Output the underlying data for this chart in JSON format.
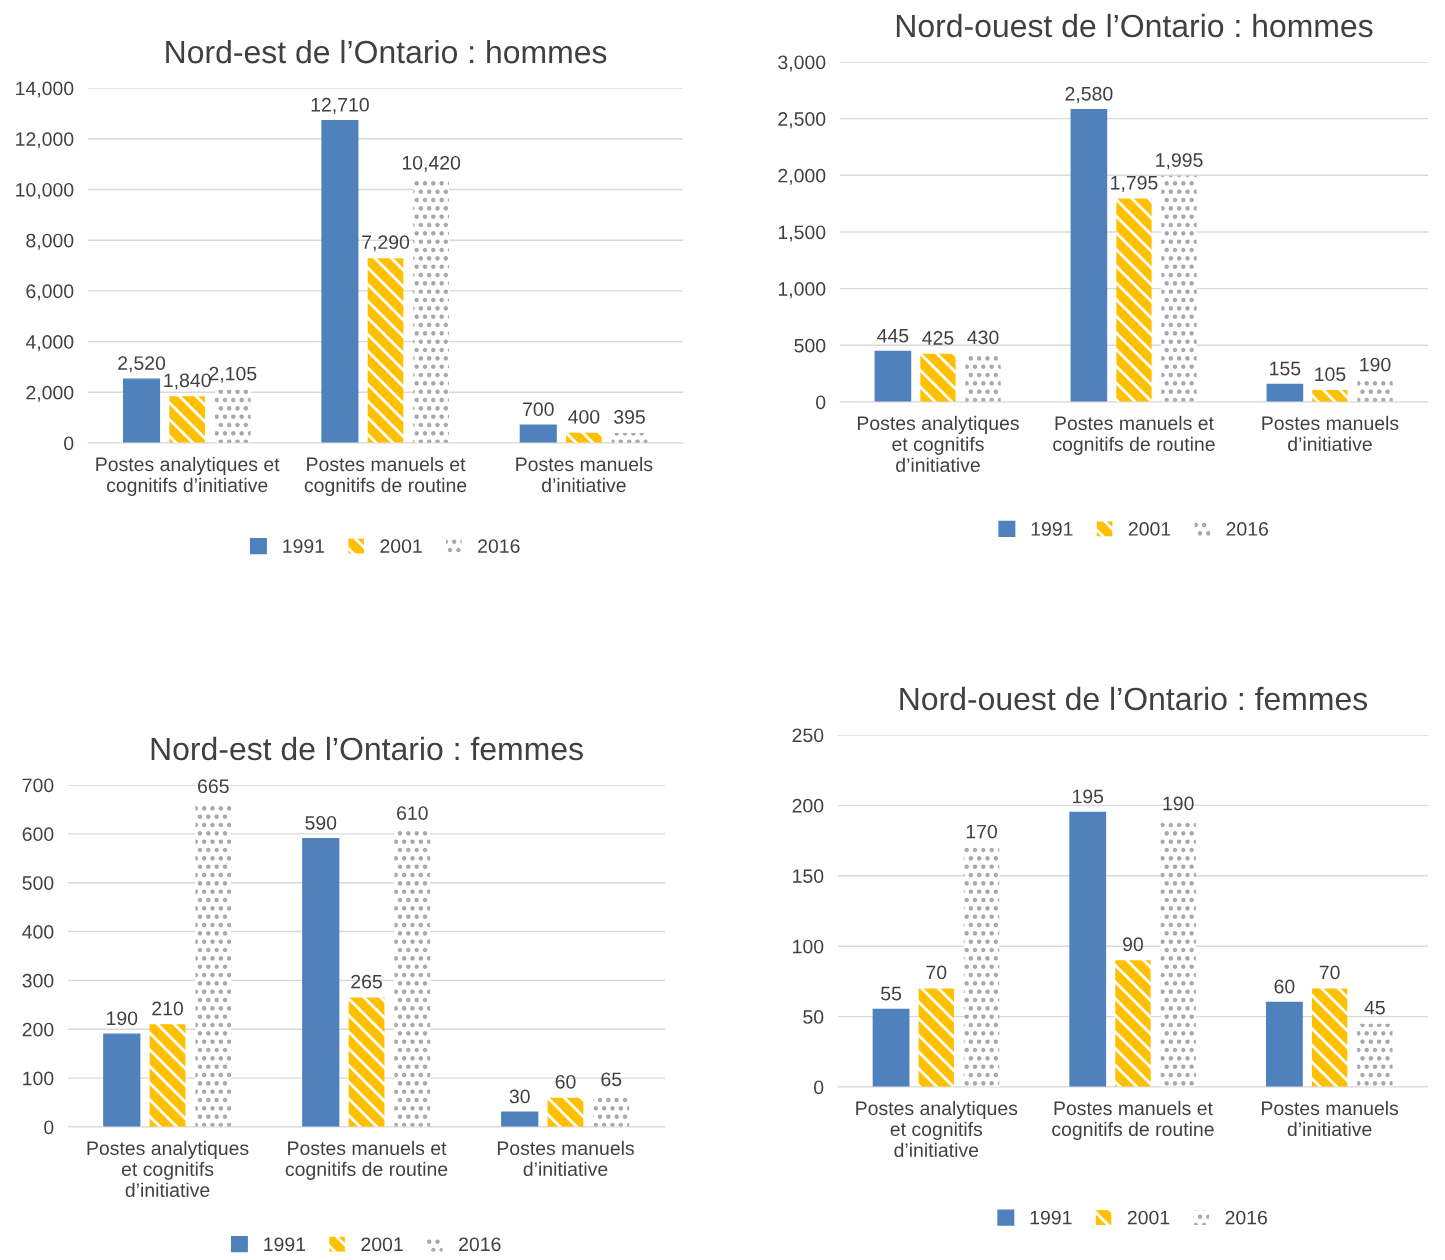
{
  "chart_data": [
    {
      "type": "bar",
      "title": "Nord-est de l’Ontario : hommes",
      "categories": [
        "Postes analytiques et\ncognitifs d’initiative",
        "Postes manuels et\ncognitifs de routine",
        "Postes manuels\nd’initiative"
      ],
      "series": [
        {
          "name": "1991",
          "color": "#4f81bd",
          "values": [
            2520,
            12710,
            700
          ],
          "value_labels": [
            "2,520",
            "12,710",
            "700"
          ]
        },
        {
          "name": "2001",
          "color": "#ffc000",
          "values": [
            1840,
            7290,
            400
          ],
          "value_labels": [
            "1,840",
            "7,290",
            "400"
          ]
        },
        {
          "name": "2016",
          "color": "#a6a6a6",
          "values": [
            2105,
            10420,
            395
          ],
          "value_labels": [
            "2,105",
            "10,420",
            "395"
          ]
        }
      ],
      "ylim": [
        0,
        14000
      ],
      "yticks": [
        0,
        {
          "value": 2000,
          "label": "2,000"
        },
        {
          "value": 4000,
          "label": "4,000"
        },
        {
          "value": 6000,
          "label": "6,000"
        },
        {
          "value": 8000,
          "label": "8,000"
        },
        {
          "value": 10000,
          "label": "10,000"
        },
        {
          "value": 12000,
          "label": "12,000"
        },
        {
          "value": 14000,
          "label": "14,000"
        }
      ],
      "grid": "y",
      "legend": "bottom"
    },
    {
      "type": "bar",
      "title": "Nord-ouest de l’Ontario : hommes",
      "categories": [
        "Postes analytiques\net cognitifs\nd’initiative",
        "Postes manuels et\ncognitifs de routine",
        "Postes manuels\nd’initiative"
      ],
      "series": [
        {
          "name": "1991",
          "color": "#4f81bd",
          "values": [
            445,
            2580,
            155
          ],
          "value_labels": [
            "445",
            "2,580",
            "155"
          ]
        },
        {
          "name": "2001",
          "color": "#ffc000",
          "values": [
            425,
            1795,
            105
          ],
          "value_labels": [
            "425",
            "1,795",
            "105"
          ]
        },
        {
          "name": "2016",
          "color": "#a6a6a6",
          "values": [
            430,
            1995,
            190
          ],
          "value_labels": [
            "430",
            "1,995",
            "190"
          ]
        }
      ],
      "ylim": [
        0,
        3000
      ],
      "yticks": [
        0,
        500,
        {
          "value": 1000,
          "label": "1,000"
        },
        {
          "value": 1500,
          "label": "1,500"
        },
        {
          "value": 2000,
          "label": "2,000"
        },
        {
          "value": 2500,
          "label": "2,500"
        },
        {
          "value": 3000,
          "label": "3,000"
        }
      ],
      "grid": "y",
      "legend": "bottom"
    },
    {
      "type": "bar",
      "title": "Nord-est de l’Ontario : femmes",
      "categories": [
        "Postes analytiques\net cognitifs\nd’initiative",
        "Postes manuels et\ncognitifs de routine",
        "Postes manuels\nd’initiative"
      ],
      "series": [
        {
          "name": "1991",
          "color": "#4f81bd",
          "values": [
            190,
            590,
            30
          ],
          "value_labels": [
            "190",
            "590",
            "30"
          ]
        },
        {
          "name": "2001",
          "color": "#ffc000",
          "values": [
            210,
            265,
            60
          ],
          "value_labels": [
            "210",
            "265",
            "60"
          ]
        },
        {
          "name": "2016",
          "color": "#a6a6a6",
          "values": [
            665,
            610,
            65
          ],
          "value_labels": [
            "665",
            "610",
            "65"
          ]
        }
      ],
      "ylim": [
        0,
        700
      ],
      "yticks": [
        0,
        100,
        200,
        300,
        400,
        500,
        600,
        700
      ],
      "grid": "y",
      "legend": "bottom"
    },
    {
      "type": "bar",
      "title": "Nord-ouest de l’Ontario : femmes",
      "categories": [
        "Postes analytiques\net cognitifs\nd’initiative",
        "Postes manuels et\ncognitifs de routine",
        "Postes manuels\nd’initiative"
      ],
      "series": [
        {
          "name": "1991",
          "color": "#4f81bd",
          "values": [
            55,
            195,
            60
          ],
          "value_labels": [
            "55",
            "195",
            "60"
          ]
        },
        {
          "name": "2001",
          "color": "#ffc000",
          "values": [
            70,
            90,
            70
          ],
          "value_labels": [
            "70",
            "90",
            "70"
          ]
        },
        {
          "name": "2016",
          "color": "#a6a6a6",
          "values": [
            170,
            190,
            45
          ],
          "value_labels": [
            "170",
            "190",
            "45"
          ]
        }
      ],
      "ylim": [
        0,
        250
      ],
      "yticks": [
        0,
        50,
        100,
        150,
        200,
        250
      ],
      "grid": "y",
      "legend": "bottom"
    }
  ]
}
